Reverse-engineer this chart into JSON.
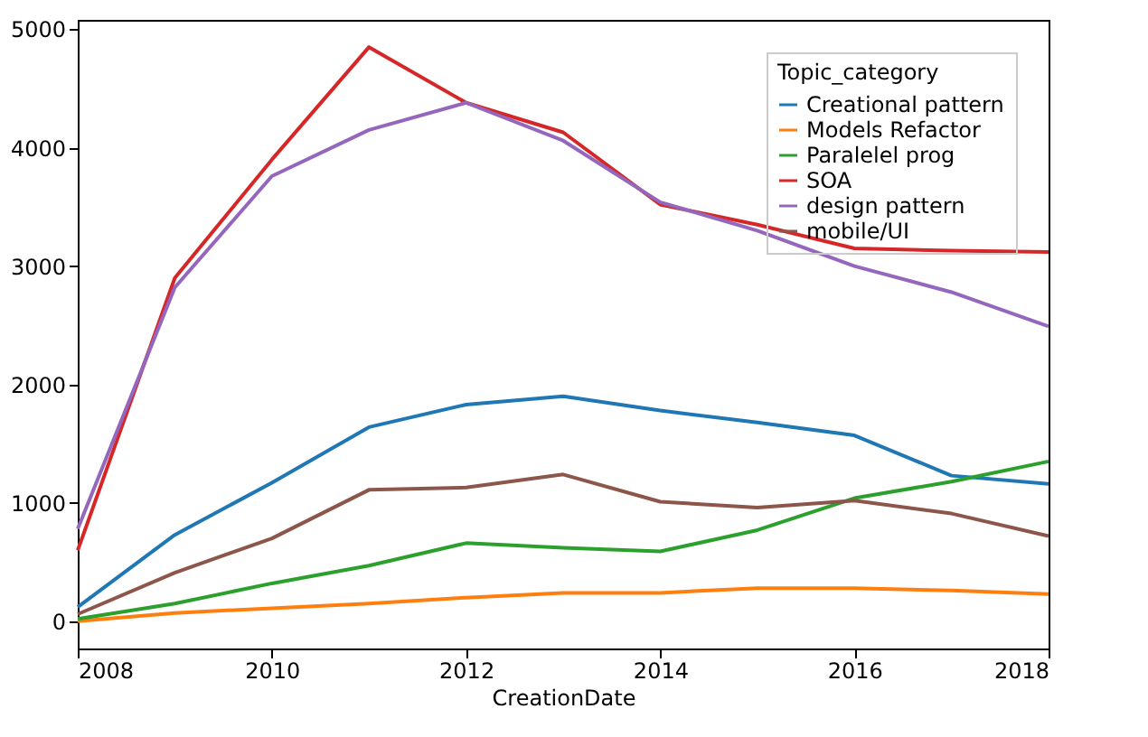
{
  "chart_data": {
    "type": "line",
    "xlabel": "CreationDate",
    "legend_title": "Topic_category",
    "x": [
      2008,
      2009,
      2010,
      2011,
      2012,
      2013,
      2014,
      2015,
      2016,
      2017,
      2018
    ],
    "series": [
      {
        "name": "Creational pattern",
        "color": "#1f77b4",
        "values": [
          120,
          730,
          1170,
          1640,
          1830,
          1900,
          1780,
          1680,
          1570,
          1230,
          1160
        ]
      },
      {
        "name": "Models Refactor",
        "color": "#ff7f0e",
        "values": [
          0,
          70,
          110,
          150,
          200,
          240,
          240,
          280,
          280,
          260,
          230
        ]
      },
      {
        "name": "Paralelel prog",
        "color": "#2ca02c",
        "values": [
          20,
          150,
          320,
          470,
          660,
          620,
          590,
          770,
          1040,
          1180,
          1350
        ]
      },
      {
        "name": "SOA",
        "color": "#d62728",
        "values": [
          600,
          2900,
          3900,
          4850,
          4380,
          4130,
          3520,
          3350,
          3150,
          3130,
          3120
        ]
      },
      {
        "name": "design pattern",
        "color": "#9467bd",
        "values": [
          780,
          2820,
          3760,
          4150,
          4380,
          4060,
          3540,
          3300,
          3000,
          2780,
          2490
        ]
      },
      {
        "name": "mobile/UI",
        "color": "#8c564b",
        "values": [
          60,
          410,
          700,
          1110,
          1130,
          1240,
          1010,
          960,
          1020,
          910,
          720
        ]
      }
    ],
    "xlim": [
      2008,
      2018
    ],
    "xticks": [
      2008,
      2010,
      2012,
      2014,
      2016,
      2018
    ],
    "ylim": [
      -230,
      5080
    ],
    "yticks": [
      0,
      1000,
      2000,
      3000,
      4000,
      5000
    ],
    "grid": false,
    "legend": "top right",
    "marker": "none",
    "line_style": "solid"
  }
}
